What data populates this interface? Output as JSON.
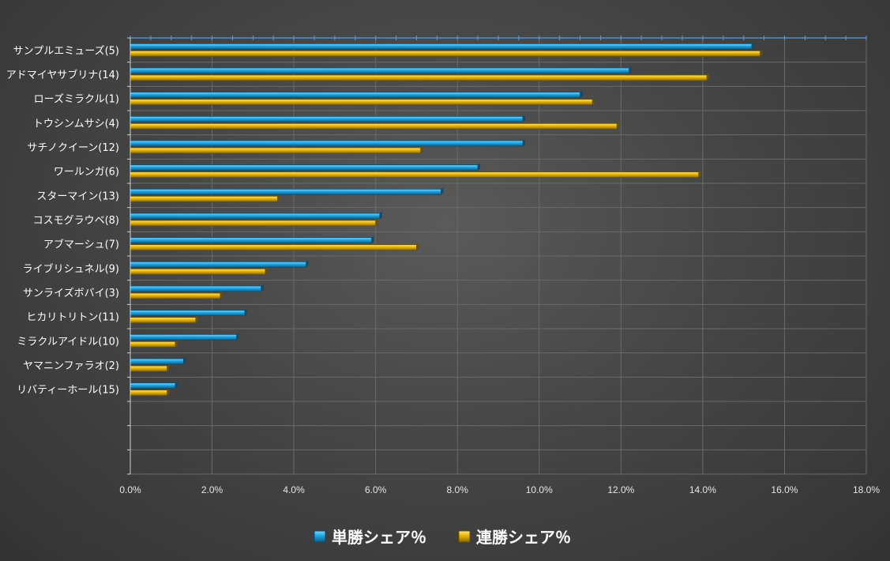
{
  "chart_data": {
    "type": "bar",
    "orientation": "horizontal",
    "categories": [
      "サンプルエミューズ(5)",
      "アドマイヤサブリナ(14)",
      "ローズミラクル(1)",
      "トウシンムサシ(4)",
      "サチノクイーン(12)",
      "ワールンガ(6)",
      "スターマイン(13)",
      "コスモグラウベ(8)",
      "アブマーシュ(7)",
      "ライブリシュネル(9)",
      "サンライズボバイ(3)",
      "ヒカリトリトン(11)",
      "ミラクルアイドル(10)",
      "ヤマニンファラオ(2)",
      "リバティーホール(15)"
    ],
    "series": [
      {
        "name": "単勝シェア％",
        "color": "#1ca3e0",
        "values": [
          15.2,
          12.2,
          11.0,
          9.6,
          9.6,
          8.5,
          7.6,
          6.1,
          5.9,
          4.3,
          3.2,
          2.8,
          2.6,
          1.3,
          1.1
        ]
      },
      {
        "name": "連勝シェア％",
        "color": "#e8b400",
        "values": [
          15.4,
          14.1,
          11.3,
          11.9,
          7.1,
          13.9,
          3.6,
          6.0,
          7.0,
          3.3,
          2.2,
          1.6,
          1.1,
          0.9,
          0.9
        ]
      }
    ],
    "x_ticks": [
      "0.0%",
      "2.0%",
      "4.0%",
      "6.0%",
      "8.0%",
      "10.0%",
      "12.0%",
      "14.0%",
      "16.0%",
      "18.0%"
    ],
    "xlim": [
      0,
      18
    ],
    "grid": true,
    "legend_position": "bottom",
    "colors": {
      "background": "#464646",
      "grid": "#6a6a6a",
      "axis": "#5b9bd5",
      "text": "#ffffff"
    }
  }
}
